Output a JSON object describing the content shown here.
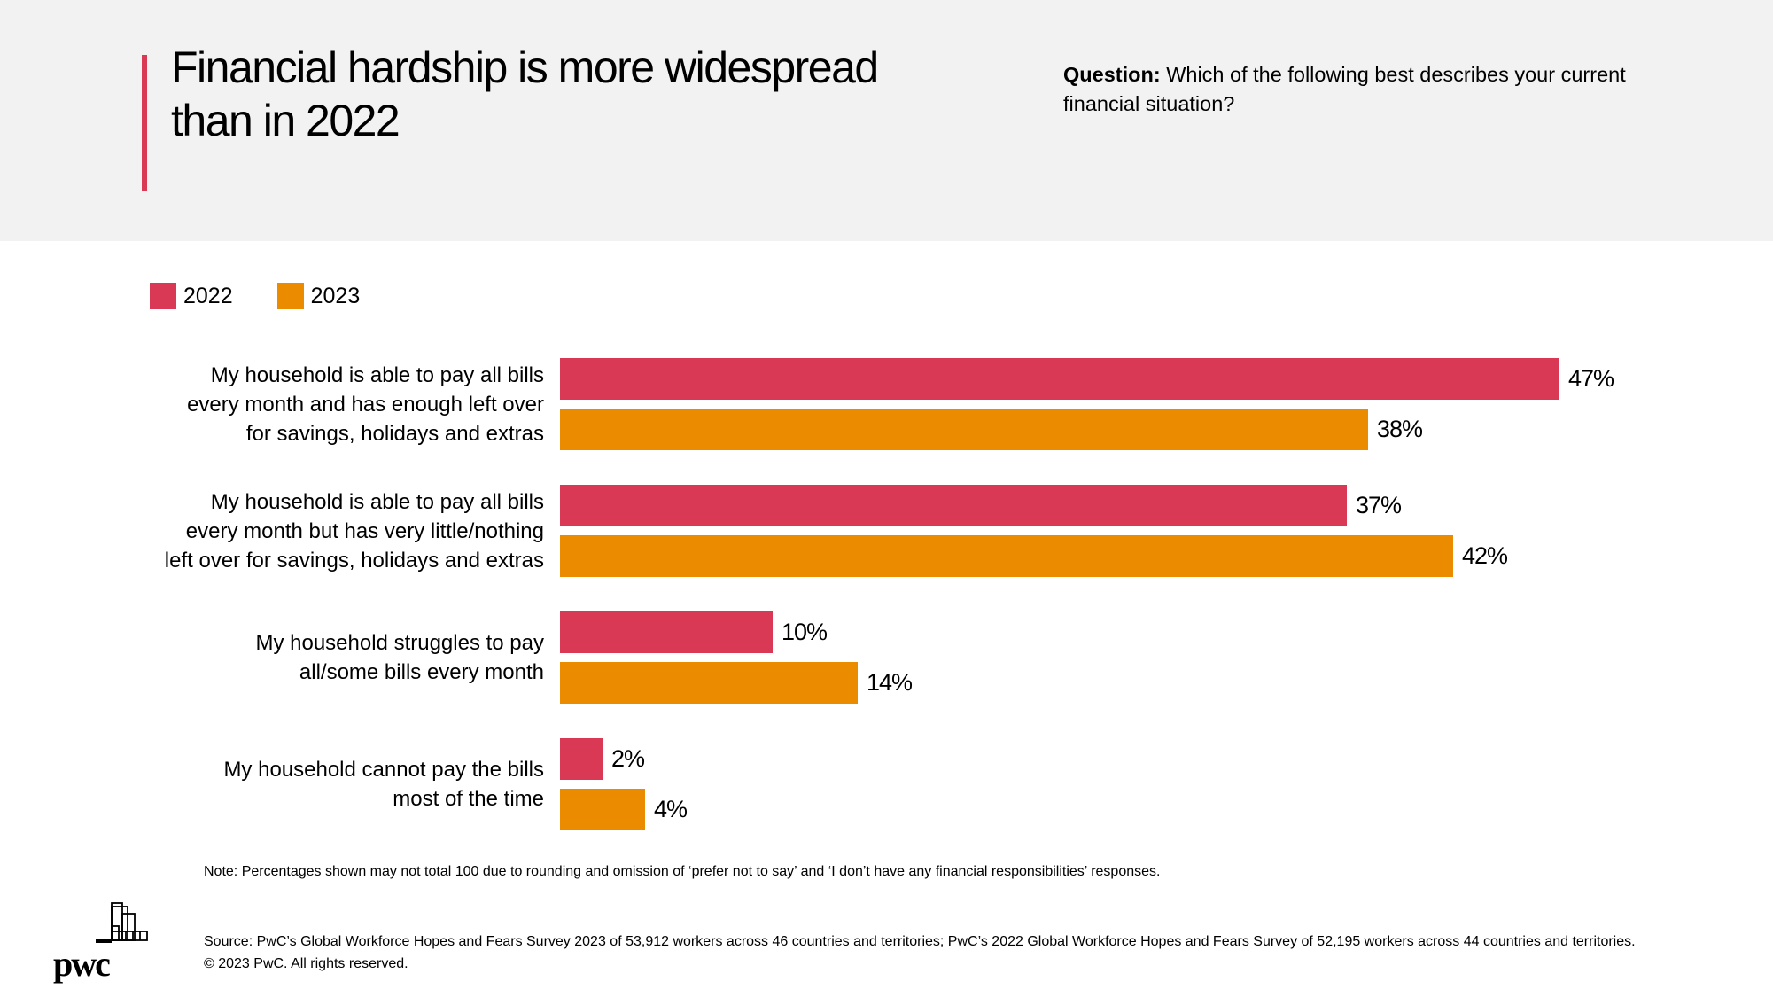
{
  "header": {
    "title": "Financial hardship is more widespread than in 2022",
    "question_label": "Question:",
    "question_text": " Which of the following best describes your current financial situation?"
  },
  "colors": {
    "accent": "#d93954",
    "series_2022": "#d93954",
    "series_2023": "#eb8c00",
    "header_bg": "#f2f2f2"
  },
  "chart_data": {
    "type": "bar",
    "orientation": "horizontal",
    "title": "Financial hardship is more widespread than in 2022",
    "xlabel": "",
    "ylabel": "",
    "unit": "%",
    "xlim": [
      0,
      47
    ],
    "grid": false,
    "legend_position": "top-left",
    "categories": [
      "My household is able to pay all bills every month and has enough left over for savings, holidays and extras",
      "My household is able to pay all bills every month but has very little/nothing left over for savings, holidays and extras",
      "My household struggles to pay all/some bills every month",
      "My household cannot pay the bills most of the time"
    ],
    "category_lines": [
      [
        "My household is able to pay all bills",
        "every month and has enough left over",
        "for savings, holidays and extras"
      ],
      [
        "My household is able to pay all bills",
        "every month but has very little/nothing",
        "left over for savings, holidays and extras"
      ],
      [
        "My household struggles to pay",
        "all/some bills every month"
      ],
      [
        "My household cannot pay the bills",
        "most of the time"
      ]
    ],
    "series": [
      {
        "name": "2022",
        "color": "#d93954",
        "values": [
          47,
          37,
          10,
          2
        ],
        "labels": [
          "47%",
          "37%",
          "10%",
          "2%"
        ]
      },
      {
        "name": "2023",
        "color": "#eb8c00",
        "values": [
          38,
          42,
          14,
          4
        ],
        "labels": [
          "38%",
          "42%",
          "14%",
          "4%"
        ]
      }
    ]
  },
  "footer": {
    "note": "Note: Percentages shown may not total 100 due to rounding and omission of ‘prefer not to say’ and ‘I don’t have any financial responsibilities’ responses.",
    "source": "Source: PwC’s Global Workforce Hopes and Fears Survey 2023 of 53,912 workers across 46 countries and territories; PwC’s 2022 Global Workforce Hopes and Fears Survey of 52,195 workers across 44 countries and territories.",
    "copyright": "© 2023 PwC. All rights reserved.",
    "logo_text": "pwc"
  }
}
